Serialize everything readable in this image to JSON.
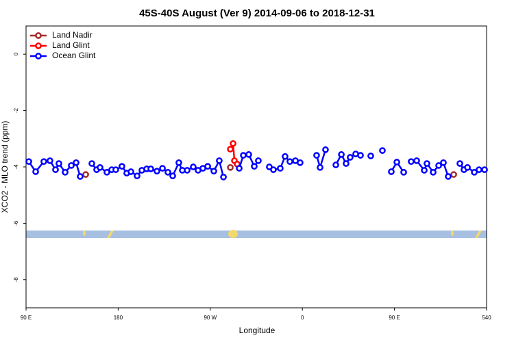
{
  "chart_data": {
    "type": "line",
    "title": "45S-40S August (Ver 9)   2014-09-06 to 2018-12-31",
    "x_label": "Longitude",
    "y_label": "XCO2 - MLO trend (ppm)",
    "xlim": [
      90,
      540
    ],
    "ylim": [
      -9,
      1
    ],
    "xticks": [
      {
        "value": 90,
        "label": "90 E"
      },
      180,
      {
        "value": 270,
        "label": "90 W"
      },
      {
        "value": 360,
        "label": "0"
      },
      {
        "value": 450,
        "label": "90 E"
      },
      540
    ],
    "yticks": [
      0,
      -2,
      -4,
      -6,
      -8
    ],
    "legend": "top-left",
    "series": [
      {
        "name": "Land Nadir",
        "color": "#a52a2a",
        "x": [
          148.3,
          null,
          289.6,
          null,
          507.9
        ],
        "values": [
          -4.27,
          null,
          -4.02,
          null,
          -4.27
        ]
      },
      {
        "name": "Land Glint",
        "color": "#ff0000",
        "x": [
          289.6,
          292.3,
          293.6,
          296.3
        ],
        "values": [
          -3.37,
          -3.17,
          -3.78,
          -3.9
        ]
      },
      {
        "name": "Ocean Glint",
        "color": "#0000ff",
        "x": [
          92.7,
          99.4,
          107.4,
          113.4,
          118.8,
          122.1,
          128.2,
          134.2,
          138.9,
          142.9,
          null,
          154.3,
          159.0,
          162.3,
          169.0,
          173.7,
          177.7,
          183.7,
          188.4,
          192.5,
          198.5,
          203.2,
          207.9,
          211.9,
          217.9,
          223.3,
          228.6,
          233.3,
          239.3,
          242.7,
          247.4,
          253.4,
          258.1,
          262.8,
          267.5,
          273.5,
          278.8,
          282.9,
          null,
          298.3,
          302.3,
          307.6,
          313.0,
          317.0,
          null,
          327.7,
          331.7,
          338.4,
          343.1,
          347.8,
          353.2,
          357.8,
          null,
          373.9,
          377.3,
          382.6,
          null,
          392.7,
          398.1,
          402.7,
          406.7,
          412.1,
          416.8,
          null,
          426.8,
          null,
          438.2,
          null,
          446.9,
          452.3,
          459.0,
          null,
          466.3,
          471.7,
          479.1,
          481.7,
          487.8,
          493.2,
          497.8,
          502.5,
          null,
          513.9,
          517.9,
          521.3,
          528.0,
          532.6,
          538.0
        ],
        "values": [
          -3.81,
          -4.17,
          -3.81,
          -3.78,
          -4.1,
          -3.88,
          -4.19,
          -3.95,
          -3.85,
          -4.34,
          null,
          -3.88,
          -4.1,
          -4.02,
          -4.19,
          -4.1,
          -4.1,
          -3.98,
          -4.22,
          -4.17,
          -4.32,
          -4.12,
          -4.07,
          -4.07,
          -4.15,
          -4.05,
          -4.19,
          -4.32,
          -3.85,
          -4.12,
          -4.12,
          -4.0,
          -4.12,
          -4.05,
          -3.98,
          -4.15,
          -3.78,
          -4.36,
          null,
          -4.05,
          -3.59,
          -3.56,
          -3.98,
          -3.78,
          null,
          -4.0,
          -4.1,
          -4.05,
          -3.63,
          -3.81,
          -3.78,
          -3.85,
          null,
          -3.59,
          -4.02,
          -3.39,
          null,
          -3.93,
          -3.56,
          -3.88,
          -3.66,
          -3.54,
          -3.59,
          null,
          -3.61,
          null,
          -3.42,
          null,
          -4.17,
          -3.83,
          -4.19,
          null,
          -3.81,
          -3.78,
          -4.12,
          -3.88,
          -4.19,
          -3.95,
          -3.85,
          -4.34,
          null,
          -3.88,
          -4.1,
          -4.02,
          -4.19,
          -4.1,
          -4.1
        ]
      }
    ]
  }
}
